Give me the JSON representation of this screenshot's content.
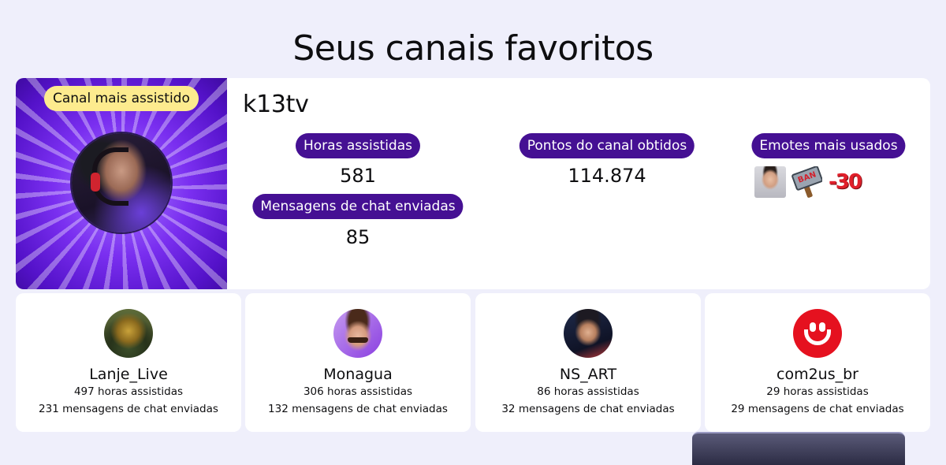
{
  "page": {
    "title": "Seus canais favoritos"
  },
  "featured": {
    "badge": "Canal mais assistido",
    "channel": "k13tv",
    "hours_label": "Horas assistidas",
    "hours_value": "581",
    "messages_label": "Mensagens de chat enviadas",
    "messages_value": "85",
    "points_label": "Pontos do canal obtidos",
    "points_value": "114.874",
    "emotes_label": "Emotes mais usados",
    "emotes": [
      {
        "icon": "streamer-face-emote-icon"
      },
      {
        "icon": "ban-hammer-emote-icon",
        "text": "BAN"
      },
      {
        "icon": "minus-thirty-emote-icon",
        "text": "-30"
      }
    ]
  },
  "channels": [
    {
      "name": "Lanje_Live",
      "hours": "497 horas assistidas",
      "messages": "231 mensagens de chat enviadas"
    },
    {
      "name": "Monagua",
      "hours": "306 horas assistidas",
      "messages": "132 mensagens de chat enviadas"
    },
    {
      "name": "NS_ART",
      "hours": "86 horas assistidas",
      "messages": "32 mensagens de chat enviadas"
    },
    {
      "name": "com2us_br",
      "hours": "29 horas assistidas",
      "messages": "29 mensagens de chat enviadas"
    }
  ],
  "colors": {
    "background": "#efeffb",
    "pill": "#451093",
    "badge": "#fdeb8e",
    "card": "#ffffff"
  }
}
